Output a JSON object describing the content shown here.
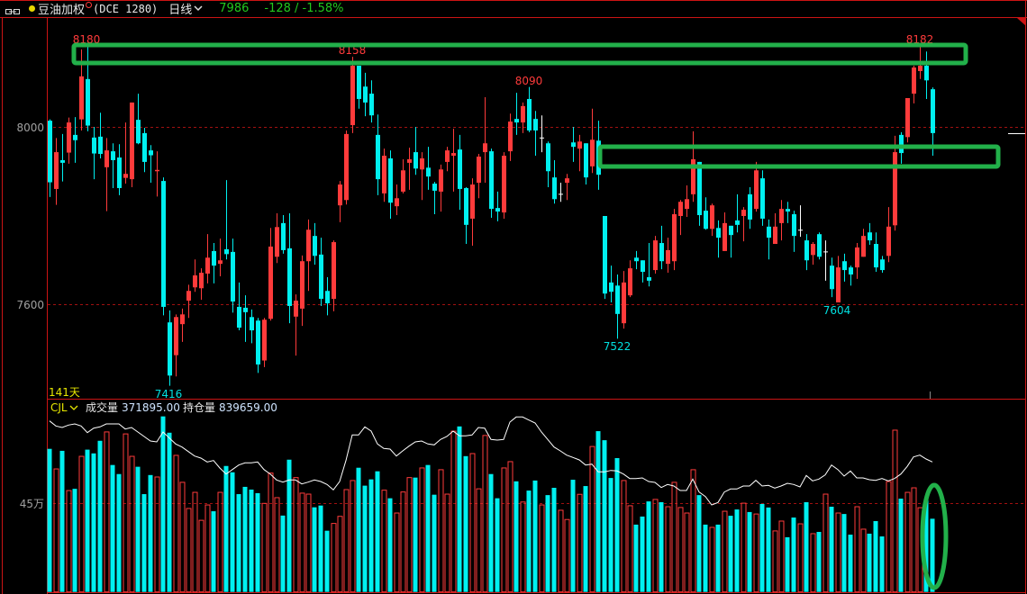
{
  "header": {
    "symbol": "豆油加权",
    "exchange_code": "(DCE 1280)",
    "period": "日线",
    "last_price": "7986",
    "change": "-128 / -1.58%",
    "icons": [
      "link-icon",
      "status-dot-icon",
      "superscript-circle-icon",
      "chevron-down-icon"
    ]
  },
  "price_panel": {
    "days_label": "141天",
    "axis_ticks": [
      "8000",
      "7600"
    ],
    "annotations": {
      "high_1": "8180",
      "high_2": "8158",
      "high_3": "8090",
      "high_4": "8182",
      "low_1": "7416",
      "low_2": "7522",
      "low_3": "7604"
    }
  },
  "volume_panel": {
    "indicator": "CJL",
    "volume_label": "成交量",
    "volume_value": "371895.00",
    "oi_label": "持仓量",
    "oi_value": "839659.00",
    "axis_tick": "45万"
  },
  "colors": {
    "up": "#ff3b3b",
    "down": "#00f0f0",
    "doji": "#ffffff",
    "frame": "#cc1414",
    "grid": "#a01010",
    "markup": "#22b04a",
    "price_text": "#22c81e",
    "oi_line": "#ffffff",
    "label_yellow": "#e6e600"
  },
  "chart_data": {
    "type": "candlestick",
    "title": "",
    "bars": 141,
    "price_ylim": [
      7370,
      8240
    ],
    "price_ticks": [
      8000,
      7600
    ],
    "volume_ticks": [
      450000
    ],
    "grid": "dashed horizontal at ticks",
    "ohlc_order": [
      "open",
      "high",
      "low",
      "close"
    ],
    "ohlc": [
      [
        8014,
        8017,
        7842,
        7875
      ],
      [
        7860,
        7975,
        7824,
        7943
      ],
      [
        7925,
        7984,
        7877,
        7919
      ],
      [
        7942,
        8021,
        7917,
        8010
      ],
      [
        7982,
        8022,
        7919,
        7970
      ],
      [
        8017,
        8175,
        7992,
        8114
      ],
      [
        8108,
        8180,
        7990,
        8003
      ],
      [
        7976,
        8000,
        7882,
        7940
      ],
      [
        7978,
        8032,
        7929,
        7939
      ],
      [
        7909,
        7975,
        7810,
        7947
      ],
      [
        7945,
        7963,
        7862,
        7925
      ],
      [
        7931,
        7961,
        7846,
        7862
      ],
      [
        7885,
        8010,
        7872,
        7894
      ],
      [
        7882,
        8055,
        7864,
        8055
      ],
      [
        8016,
        8075,
        7961,
        7963
      ],
      [
        7986,
        7998,
        7898,
        7921
      ],
      [
        7947,
        7959,
        7874,
        7936
      ],
      [
        7900,
        7945,
        7843,
        7903
      ],
      [
        7878,
        7886,
        7575,
        7594
      ],
      [
        7559,
        7586,
        7416,
        7439
      ],
      [
        7485,
        7577,
        7437,
        7571
      ],
      [
        7555,
        7590,
        7515,
        7577
      ],
      [
        7608,
        7644,
        7569,
        7630
      ],
      [
        7638,
        7701,
        7628,
        7665
      ],
      [
        7636,
        7681,
        7610,
        7671
      ],
      [
        7669,
        7758,
        7647,
        7705
      ],
      [
        7720,
        7738,
        7647,
        7687
      ],
      [
        7691,
        7748,
        7663,
        7699
      ],
      [
        7724,
        7880,
        7701,
        7713
      ],
      [
        7718,
        7748,
        7581,
        7606
      ],
      [
        7594,
        7649,
        7541,
        7547
      ],
      [
        7592,
        7620,
        7515,
        7582
      ],
      [
        7571,
        7588,
        7512,
        7541
      ],
      [
        7563,
        7569,
        7445,
        7464
      ],
      [
        7473,
        7569,
        7458,
        7565
      ],
      [
        7567,
        7772,
        7563,
        7730
      ],
      [
        7707,
        7805,
        7693,
        7774
      ],
      [
        7783,
        7801,
        7714,
        7722
      ],
      [
        7726,
        7805,
        7557,
        7596
      ],
      [
        7572,
        7622,
        7484,
        7608
      ],
      [
        7590,
        7710,
        7551,
        7697
      ],
      [
        7697,
        7791,
        7630,
        7768
      ],
      [
        7754,
        7783,
        7689,
        7709
      ],
      [
        7712,
        7750,
        7596,
        7612
      ],
      [
        7630,
        7661,
        7575,
        7602
      ],
      [
        7612,
        7744,
        7584,
        7740
      ],
      [
        7823,
        7878,
        7785,
        7870
      ],
      [
        7835,
        7992,
        7825,
        7984
      ],
      [
        8004,
        8158,
        7986,
        8138
      ],
      [
        8138,
        8138,
        8041,
        8063
      ],
      [
        8091,
        8122,
        8024,
        8055
      ],
      [
        8075,
        8105,
        8010,
        8026
      ],
      [
        7982,
        8028,
        7846,
        7882
      ],
      [
        7850,
        7951,
        7831,
        7935
      ],
      [
        7929,
        7947,
        7793,
        7829
      ],
      [
        7821,
        7870,
        7801,
        7839
      ],
      [
        7854,
        7927,
        7850,
        7902
      ],
      [
        7919,
        7953,
        7858,
        7927
      ],
      [
        7943,
        8000,
        7892,
        7906
      ],
      [
        7904,
        7943,
        7835,
        7929
      ],
      [
        7908,
        7955,
        7858,
        7888
      ],
      [
        7872,
        7876,
        7803,
        7856
      ],
      [
        7854,
        7915,
        7809,
        7904
      ],
      [
        7921,
        7955,
        7900,
        7947
      ],
      [
        7935,
        7996,
        7854,
        7941
      ],
      [
        7949,
        7982,
        7813,
        7860
      ],
      [
        7862,
        7864,
        7736,
        7779
      ],
      [
        7793,
        7884,
        7732,
        7870
      ],
      [
        7874,
        7939,
        7839,
        7933
      ],
      [
        7943,
        8067,
        7874,
        7963
      ],
      [
        7945,
        7951,
        7795,
        7815
      ],
      [
        7817,
        7854,
        7787,
        7809
      ],
      [
        7807,
        7943,
        7793,
        7935
      ],
      [
        7945,
        8030,
        7923,
        8012
      ],
      [
        8018,
        8077,
        7982,
        8010
      ],
      [
        8010,
        8055,
        7986,
        8047
      ],
      [
        8063,
        8090,
        7988,
        7992
      ],
      [
        8018,
        8036,
        7935,
        7992
      ],
      [
        7975,
        8026,
        7943,
        7975
      ],
      [
        7963,
        7967,
        7864,
        7900
      ],
      [
        7886,
        7925,
        7827,
        7837
      ],
      [
        7848,
        7874,
        7831,
        7848
      ],
      [
        7874,
        7894,
        7835,
        7884
      ],
      [
        7965,
        8000,
        7921,
        7955
      ],
      [
        7951,
        7982,
        7900,
        7967
      ],
      [
        7963,
        7963,
        7870,
        7886
      ],
      [
        7911,
        8041,
        7896,
        7971
      ],
      [
        7969,
        8014,
        7858,
        7892
      ],
      [
        7799,
        7799,
        7612,
        7624
      ],
      [
        7649,
        7687,
        7604,
        7628
      ],
      [
        7642,
        7667,
        7522,
        7578
      ],
      [
        7557,
        7675,
        7545,
        7649
      ],
      [
        7620,
        7699,
        7616,
        7681
      ],
      [
        7705,
        7720,
        7679,
        7697
      ],
      [
        7699,
        7699,
        7649,
        7673
      ],
      [
        7661,
        7738,
        7640,
        7653
      ],
      [
        7677,
        7754,
        7669,
        7744
      ],
      [
        7738,
        7777,
        7679,
        7697
      ],
      [
        7691,
        7750,
        7671,
        7722
      ],
      [
        7697,
        7815,
        7677,
        7803
      ],
      [
        7799,
        7835,
        7756,
        7831
      ],
      [
        7815,
        7868,
        7797,
        7837
      ],
      [
        7848,
        7990,
        7831,
        7927
      ],
      [
        7921,
        7921,
        7777,
        7801
      ],
      [
        7811,
        7841,
        7768,
        7770
      ],
      [
        7770,
        7827,
        7754,
        7823
      ],
      [
        7772,
        7789,
        7705,
        7750
      ],
      [
        7720,
        7807,
        7720,
        7783
      ],
      [
        7777,
        7777,
        7705,
        7756
      ],
      [
        7789,
        7848,
        7762,
        7779
      ],
      [
        7799,
        7819,
        7742,
        7813
      ],
      [
        7848,
        7864,
        7770,
        7791
      ],
      [
        7815,
        7921,
        7809,
        7902
      ],
      [
        7884,
        7902,
        7777,
        7793
      ],
      [
        7775,
        7791,
        7701,
        7750
      ],
      [
        7736,
        7805,
        7736,
        7775
      ],
      [
        7783,
        7835,
        7744,
        7815
      ],
      [
        7815,
        7831,
        7783,
        7809
      ],
      [
        7803,
        7811,
        7718,
        7754
      ],
      [
        7767,
        7823,
        7752,
        7767
      ],
      [
        7744,
        7758,
        7677,
        7699
      ],
      [
        7711,
        7740,
        7689,
        7736
      ],
      [
        7758,
        7762,
        7701,
        7707
      ],
      [
        7718,
        7744,
        7653,
        7718
      ],
      [
        7687,
        7705,
        7616,
        7634
      ],
      [
        7604,
        7709,
        7604,
        7683
      ],
      [
        7697,
        7714,
        7651,
        7677
      ],
      [
        7683,
        7687,
        7642,
        7667
      ],
      [
        7683,
        7738,
        7657,
        7728
      ],
      [
        7707,
        7770,
        7707,
        7754
      ],
      [
        7762,
        7783,
        7734,
        7744
      ],
      [
        7736,
        7762,
        7673,
        7683
      ],
      [
        7701,
        7709,
        7671,
        7677
      ],
      [
        7709,
        7819,
        7695,
        7775
      ],
      [
        7778,
        7980,
        7766,
        7943
      ],
      [
        7982,
        7988,
        7917,
        7941
      ],
      [
        7977,
        8065,
        7965,
        8065
      ],
      [
        8075,
        8138,
        8053,
        8134
      ],
      [
        8126,
        8182,
        8108,
        8138
      ],
      [
        8138,
        8170,
        8063,
        8105
      ],
      [
        8085,
        8089,
        7935,
        7986
      ]
    ],
    "volume": [
      727000,
      625000,
      717000,
      515000,
      524000,
      689000,
      723000,
      704000,
      768000,
      813000,
      645000,
      599000,
      803000,
      689000,
      636000,
      497000,
      594000,
      584000,
      892000,
      809000,
      694000,
      557000,
      424000,
      506000,
      364000,
      442000,
      410000,
      506000,
      640000,
      608000,
      497000,
      534000,
      520000,
      502000,
      450000,
      604000,
      479000,
      388000,
      672000,
      581000,
      502000,
      497000,
      430000,
      439000,
      311000,
      348000,
      384000,
      520000,
      566000,
      631000,
      540000,
      572000,
      613000,
      517000,
      476000,
      401000,
      508000,
      581000,
      581000,
      630000,
      645000,
      494000,
      621000,
      497000,
      817000,
      841000,
      690000,
      703000,
      524000,
      795000,
      599000,
      476000,
      630000,
      662000,
      562000,
      457000,
      515000,
      566000,
      442000,
      492000,
      529000,
      415000,
      368000,
      570000,
      496000,
      538000,
      739000,
      817000,
      771000,
      579000,
      680000,
      566000,
      438000,
      342000,
      383000,
      460000,
      470000,
      456000,
      433000,
      557000,
      429000,
      401000,
      621000,
      492000,
      342000,
      328000,
      342000,
      410000,
      387000,
      419000,
      451000,
      406000,
      396000,
      447000,
      429000,
      310000,
      360000,
      278000,
      378000,
      346000,
      456000,
      296000,
      305000,
      497000,
      433000,
      401000,
      396000,
      291000,
      433000,
      319000,
      296000,
      360000,
      282000,
      561000,
      822000,
      474000,
      506000,
      529000,
      428000,
      470000,
      371895
    ],
    "open_interest": [
      930900,
      919700,
      916300,
      921700,
      924300,
      919700,
      904900,
      914900,
      917700,
      924300,
      924300,
      924300,
      912900,
      916300,
      906300,
      896300,
      886300,
      884300,
      906300,
      892900,
      879700,
      872900,
      862900,
      852900,
      848300,
      839700,
      842900,
      826300,
      812900,
      822900,
      832900,
      837700,
      837700,
      839700,
      822900,
      812900,
      799700,
      794900,
      799700,
      799700,
      790900,
      794900,
      799700,
      796300,
      789700,
      777700,
      796300,
      842900,
      899700,
      899700,
      917700,
      908300,
      879700,
      869700,
      868300,
      852900,
      864300,
      874900,
      884300,
      886300,
      879700,
      877700,
      889700,
      896300,
      908300,
      897700,
      897700,
      899700,
      916300,
      914900,
      889700,
      888300,
      889700,
      928300,
      939700,
      939700,
      932900,
      926300,
      906300,
      889700,
      872900,
      864300,
      854900,
      849700,
      844300,
      832900,
      834900,
      817700,
      817700,
      820900,
      819700,
      812900,
      802900,
      802900,
      804300,
      796300,
      794300,
      782900,
      789700,
      786300,
      776300,
      776300,
      801700,
      772900,
      762900,
      744300,
      749700,
      772900,
      779700,
      779700,
      786300,
      786300,
      798900,
      786300,
      787700,
      781700,
      786300,
      792300,
      789700,
      784300,
      809700,
      797700,
      801700,
      810900,
      832900,
      822900,
      808300,
      819700,
      804300,
      804300,
      800300,
      798900,
      802900,
      797700,
      802900,
      812900,
      829700,
      850900,
      854900,
      846300,
      839659
    ]
  }
}
